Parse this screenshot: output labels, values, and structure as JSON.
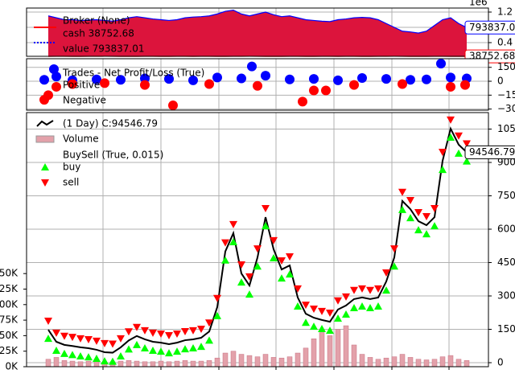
{
  "chart_data": [
    {
      "type": "area",
      "title": "Broker (None)",
      "offset_label": "1e6",
      "x": [
        0,
        1,
        2,
        3,
        4,
        5,
        6,
        7,
        8,
        9,
        10,
        11,
        12,
        13,
        14,
        15,
        16,
        17,
        18,
        19,
        20,
        21,
        22,
        23,
        24,
        25,
        26,
        27,
        28,
        29,
        30,
        31,
        32,
        33,
        34,
        35,
        36,
        37,
        38,
        39,
        40,
        41,
        42,
        43,
        44,
        45,
        46,
        47,
        48,
        49,
        50,
        51,
        52
      ],
      "xlim": [
        -2.7,
        54.7
      ],
      "xticks": [
        6.8,
        14,
        21.2,
        28.3,
        35.5,
        42.7,
        49.8
      ],
      "ylim": [
        42105,
        1305263
      ],
      "yticks": [
        {
          "value": 400000,
          "label": "0.4"
        },
        {
          "value": 800000,
          "label": "0.8"
        },
        {
          "value": 1200000,
          "label": "1.2"
        }
      ],
      "grid": true,
      "series": [
        {
          "name": "cash 38752.68",
          "color": "red",
          "last_label": "38752.68",
          "values": [
            40000,
            41000,
            42000,
            40000,
            39000,
            41000,
            42000,
            43000,
            41000,
            40000,
            39000,
            40000,
            41000,
            42000,
            40000,
            39000,
            41000,
            42000,
            40000,
            41000,
            42000,
            40000,
            39000,
            41000,
            42000,
            43000,
            41000,
            40000,
            39000,
            40000,
            41000,
            42000,
            40000,
            39000,
            41000,
            42000,
            40000,
            41000,
            42000,
            40000,
            39000,
            41000,
            42000,
            43000,
            41000,
            40000,
            39000,
            40000,
            41000,
            42000,
            40000,
            39000,
            38752.68
          ]
        },
        {
          "name": "value 793837.01",
          "color": "blue",
          "fill": "#dc143c",
          "last_label": "793837.01",
          "values": [
            1100000,
            1050000,
            1000000,
            1000000,
            980000,
            990000,
            1000000,
            980000,
            960000,
            1000000,
            1050000,
            1080000,
            1050000,
            1020000,
            1000000,
            980000,
            1000000,
            1050000,
            1070000,
            1080000,
            1100000,
            1150000,
            1220000,
            1250000,
            1150000,
            1100000,
            1150000,
            1200000,
            1130000,
            1080000,
            1100000,
            1050000,
            1000000,
            980000,
            960000,
            950000,
            1000000,
            1020000,
            1050000,
            1060000,
            1050000,
            1000000,
            900000,
            800000,
            700000,
            680000,
            650000,
            700000,
            850000,
            1000000,
            1050000,
            900000,
            793837.01
          ]
        }
      ]
    },
    {
      "type": "scatter",
      "title": "Trades - Net Profit/Loss (True)",
      "xlim": [
        -2.7,
        54.7
      ],
      "xticks": [
        6.8,
        14,
        21.2,
        28.3,
        35.5,
        42.7,
        49.8
      ],
      "ylim": [
        -312,
        243
      ],
      "yticks": [
        {
          "value": -300,
          "label": "−300"
        },
        {
          "value": -150,
          "label": "−150"
        },
        0,
        150
      ],
      "grid": true,
      "series": [
        {
          "name": "Positive",
          "color": "blue",
          "x": [
            -0.5,
            0.7,
            1,
            3,
            6,
            9,
            12,
            15,
            18,
            21,
            24,
            25.3,
            27,
            30,
            33,
            36,
            39,
            42,
            45,
            47,
            48.8,
            50,
            52
          ],
          "values": [
            15,
            130,
            50,
            10,
            20,
            15,
            30,
            25,
            10,
            40,
            30,
            160,
            60,
            20,
            25,
            10,
            35,
            25,
            15,
            20,
            190,
            40,
            30
          ]
        },
        {
          "name": "Negative",
          "color": "red",
          "x": [
            -0.5,
            0,
            1,
            3,
            7,
            12,
            15.5,
            20,
            26,
            31.6,
            33,
            34.5,
            38,
            44,
            50,
            51.8
          ],
          "values": [
            -200,
            -150,
            -60,
            -30,
            -20,
            -40,
            -260,
            -30,
            -50,
            -220,
            -100,
            -100,
            -40,
            -30,
            -60,
            -40
          ]
        }
      ]
    },
    {
      "type": "line",
      "buysell_label": "BuySell (True, 0.015)",
      "x": [
        0,
        1,
        2,
        3,
        4,
        5,
        6,
        7,
        8,
        9,
        10,
        11,
        12,
        13,
        14,
        15,
        16,
        17,
        18,
        19,
        20,
        21,
        22,
        23,
        24,
        25,
        26,
        27,
        28,
        29,
        30,
        31,
        32,
        33,
        34,
        35,
        36,
        37,
        38,
        39,
        40,
        41,
        42,
        43,
        44,
        45,
        46,
        47,
        48,
        49,
        50,
        51,
        52
      ],
      "xlim": [
        -2.7,
        54.7
      ],
      "xticks": [
        6.8,
        14,
        21.2,
        28.3,
        35.5,
        42.7,
        49.8
      ],
      "ylim": [
        -1807,
        112410
      ],
      "yticks": [
        0,
        15000,
        30000,
        45000,
        60000,
        75000,
        90000,
        105000
      ],
      "y2lim": [
        0,
        409300
      ],
      "y2ticks": [
        {
          "value": 0,
          "label": "0K"
        },
        {
          "value": 25000,
          "label": "25K"
        },
        {
          "value": 50000,
          "label": "50K"
        },
        {
          "value": 75000,
          "label": "75K"
        },
        {
          "value": 100000,
          "label": "100K"
        },
        {
          "value": 125000,
          "label": "125K"
        },
        {
          "value": 150000,
          "label": "150K"
        }
      ],
      "grid": true,
      "series": [
        {
          "name": "(1 Day) C:94546.79",
          "color": "black",
          "last_label": "94546.79",
          "values": [
            14800,
            9400,
            8000,
            7500,
            6900,
            6500,
            5800,
            4700,
            4500,
            6900,
            10000,
            12000,
            10500,
            9400,
            9000,
            8300,
            9000,
            10100,
            10500,
            11200,
            14000,
            25000,
            50000,
            58200,
            40100,
            34700,
            47300,
            65400,
            51000,
            41900,
            43700,
            29300,
            22000,
            20200,
            19200,
            18400,
            23900,
            25700,
            28600,
            29300,
            28600,
            29300,
            36500,
            47300,
            72700,
            69000,
            63600,
            61800,
            65400,
            90700,
            105200,
            98000,
            94546.79
          ]
        },
        {
          "name": "Volume",
          "color": "#e3a1aa",
          "axis": "y2",
          "values": [
            12000,
            15000,
            10000,
            9000,
            8000,
            9000,
            8000,
            7000,
            8000,
            9000,
            10000,
            9000,
            8000,
            8000,
            9000,
            8000,
            9000,
            10000,
            9000,
            9000,
            10000,
            14000,
            22000,
            25000,
            20000,
            18000,
            16000,
            20000,
            15000,
            14000,
            16000,
            22000,
            30000,
            45000,
            55000,
            50000,
            60000,
            66000,
            35000,
            20000,
            15000,
            12000,
            14000,
            16000,
            20000,
            15000,
            12000,
            11000,
            12000,
            16000,
            18000,
            12000,
            10000
          ]
        },
        {
          "name": "buy",
          "color": "lime",
          "marker": "^",
          "values": [
            10800,
            5400,
            4000,
            3500,
            2900,
            2500,
            1800,
            700,
            500,
            2900,
            6000,
            8000,
            6500,
            5400,
            5000,
            4300,
            5000,
            6100,
            6500,
            7200,
            10000,
            21000,
            46000,
            54200,
            36100,
            30700,
            43300,
            61400,
            47000,
            37900,
            39700,
            25300,
            18000,
            16200,
            15200,
            14400,
            19900,
            21700,
            24600,
            25300,
            24600,
            25300,
            32500,
            43300,
            68700,
            65000,
            59600,
            57800,
            61400,
            86700,
            101200,
            94000,
            90500
          ]
        },
        {
          "name": "sell",
          "color": "red",
          "marker": "v",
          "values": [
            18800,
            13400,
            12000,
            11500,
            10900,
            10500,
            9800,
            8700,
            8500,
            10900,
            14000,
            16000,
            14500,
            13400,
            13000,
            12300,
            13000,
            14100,
            14500,
            15200,
            18000,
            29000,
            54000,
            62200,
            44100,
            38700,
            51300,
            69400,
            55000,
            45900,
            47700,
            33300,
            26000,
            24200,
            23200,
            22400,
            27900,
            29700,
            32600,
            33300,
            32600,
            33300,
            40500,
            51300,
            76700,
            73000,
            67600,
            65800,
            69400,
            94700,
            109200,
            102000,
            98500
          ]
        }
      ]
    }
  ]
}
